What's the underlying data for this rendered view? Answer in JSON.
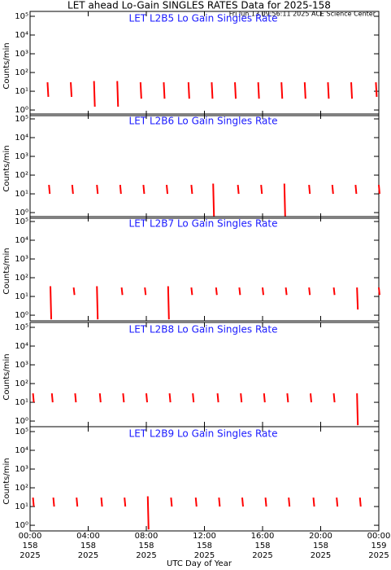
{
  "title": "LET ahead Lo-Gain SINGLES RATES Data for 2025-158",
  "timestamp": "Fri Jun 13 09:56:11 2025 ACE Science Center",
  "xlabel": "UTC Day of Year",
  "chart_data": [
    {
      "type": "spike",
      "title": "LET L2B5 Lo Gain Singles Rate",
      "ylabel": "Counts/min",
      "color": "#ff0000",
      "log": true,
      "xlim": [
        0,
        24
      ],
      "ylim": [
        0.5,
        100000
      ],
      "yticks": [
        {
          "value": 1,
          "label": "10⁰"
        },
        {
          "value": 10,
          "label": "10¹"
        },
        {
          "value": 100,
          "label": "10²"
        },
        {
          "value": 1000,
          "label": "10³"
        },
        {
          "value": 10000,
          "label": "10⁴"
        },
        {
          "value": 100000,
          "label": "10⁵"
        }
      ],
      "x": [
        1.2,
        2.8,
        4.4,
        6.0,
        7.6,
        9.2,
        10.9,
        12.5,
        14.1,
        15.7,
        17.3,
        18.9,
        20.5,
        22.1,
        23.8
      ],
      "high": [
        30,
        30,
        35,
        35,
        30,
        30,
        30,
        30,
        30,
        30,
        30,
        30,
        30,
        30,
        30
      ],
      "low": [
        5,
        5,
        1.5,
        1.5,
        4,
        4,
        4,
        4,
        4,
        4,
        4,
        4,
        4,
        4,
        5
      ]
    },
    {
      "type": "spike",
      "title": "LET L2B6 Lo Gain Singles Rate",
      "ylabel": "Counts/min",
      "color": "#ff0000",
      "log": true,
      "xlim": [
        0,
        24
      ],
      "ylim": [
        0.5,
        100000
      ],
      "yticks": [
        {
          "value": 1,
          "label": "10⁰"
        },
        {
          "value": 10,
          "label": "10¹"
        },
        {
          "value": 100,
          "label": "10²"
        },
        {
          "value": 1000,
          "label": "10³"
        },
        {
          "value": 10000,
          "label": "10⁴"
        },
        {
          "value": 100000,
          "label": "10⁵"
        }
      ],
      "x": [
        1.3,
        2.9,
        4.6,
        6.2,
        7.8,
        9.4,
        11.1,
        12.6,
        14.3,
        15.9,
        17.5,
        19.2,
        20.8,
        22.4,
        24.0
      ],
      "high": [
        30,
        30,
        30,
        30,
        30,
        30,
        30,
        35,
        30,
        30,
        35,
        30,
        30,
        30,
        30
      ],
      "low": [
        10,
        10,
        10,
        10,
        10,
        10,
        10,
        0.6,
        10,
        10,
        0.6,
        10,
        10,
        10,
        10
      ]
    },
    {
      "type": "spike",
      "title": "LET L2B7 Lo Gain Singles Rate",
      "ylabel": "Counts/min",
      "color": "#ff0000",
      "log": true,
      "xlim": [
        0,
        24
      ],
      "ylim": [
        0.5,
        100000
      ],
      "yticks": [
        {
          "value": 1,
          "label": "10⁰"
        },
        {
          "value": 10,
          "label": "10¹"
        },
        {
          "value": 100,
          "label": "10²"
        },
        {
          "value": 1000,
          "label": "10³"
        },
        {
          "value": 10000,
          "label": "10⁴"
        },
        {
          "value": 100000,
          "label": "10⁵"
        }
      ],
      "x": [
        1.4,
        3.0,
        4.6,
        6.3,
        7.9,
        9.5,
        11.1,
        12.8,
        14.4,
        16.0,
        17.6,
        19.2,
        20.9,
        22.5,
        24.0
      ],
      "high": [
        35,
        30,
        35,
        30,
        30,
        35,
        30,
        30,
        30,
        30,
        30,
        30,
        30,
        30,
        30
      ],
      "low": [
        0.6,
        12,
        0.6,
        12,
        12,
        0.6,
        12,
        12,
        12,
        12,
        12,
        12,
        12,
        2,
        12
      ]
    },
    {
      "type": "spike",
      "title": "LET L2B8 Lo Gain Singles Rate",
      "ylabel": "Counts/min",
      "color": "#ff0000",
      "log": true,
      "xlim": [
        0,
        24
      ],
      "ylim": [
        0.5,
        100000
      ],
      "yticks": [
        {
          "value": 1,
          "label": "10⁰"
        },
        {
          "value": 10,
          "label": "10¹"
        },
        {
          "value": 100,
          "label": "10²"
        },
        {
          "value": 1000,
          "label": "10³"
        },
        {
          "value": 10000,
          "label": "10⁴"
        },
        {
          "value": 100000,
          "label": "10⁵"
        }
      ],
      "x": [
        0.2,
        1.5,
        3.1,
        4.8,
        6.4,
        8.0,
        9.6,
        11.2,
        12.9,
        14.5,
        16.1,
        17.7,
        19.3,
        20.9,
        22.5
      ],
      "high": [
        30,
        30,
        30,
        30,
        30,
        30,
        30,
        30,
        30,
        30,
        30,
        30,
        30,
        30,
        30
      ],
      "low": [
        10,
        10,
        10,
        10,
        10,
        10,
        10,
        10,
        10,
        10,
        10,
        10,
        10,
        10,
        0.6
      ]
    },
    {
      "type": "spike",
      "title": "LET L2B9 Lo Gain Singles Rate",
      "ylabel": "Counts/min",
      "color": "#ff0000",
      "log": true,
      "xlim": [
        0,
        24
      ],
      "ylim": [
        0.5,
        100000
      ],
      "yticks": [
        {
          "value": 1,
          "label": "10⁰"
        },
        {
          "value": 10,
          "label": "10¹"
        },
        {
          "value": 100,
          "label": "10²"
        },
        {
          "value": 1000,
          "label": "10³"
        },
        {
          "value": 10000,
          "label": "10⁴"
        },
        {
          "value": 100000,
          "label": "10⁵"
        }
      ],
      "x": [
        0.2,
        1.6,
        3.2,
        4.9,
        6.5,
        8.1,
        9.7,
        11.4,
        13.0,
        14.6,
        16.2,
        17.8,
        19.5,
        21.1,
        22.7
      ],
      "high": [
        30,
        30,
        30,
        30,
        30,
        35,
        30,
        30,
        30,
        30,
        30,
        30,
        30,
        30,
        30
      ],
      "low": [
        10,
        10,
        10,
        10,
        10,
        0.6,
        10,
        10,
        10,
        10,
        10,
        10,
        10,
        10,
        10
      ],
      "xticks": [
        {
          "value": 0,
          "label": "00:00"
        },
        {
          "value": 4,
          "label": "04:00"
        },
        {
          "value": 8,
          "label": "08:00"
        },
        {
          "value": 12,
          "label": "12:00"
        },
        {
          "value": 16,
          "label": "16:00"
        },
        {
          "value": 20,
          "label": "20:00"
        },
        {
          "value": 24,
          "label": "00:00"
        }
      ],
      "xtick_days": [
        "158",
        "158",
        "158",
        "158",
        "158",
        "158",
        "159"
      ],
      "xtick_years": [
        "2025",
        "2025",
        "2025",
        "2025",
        "2025",
        "2025",
        "2025"
      ]
    }
  ]
}
